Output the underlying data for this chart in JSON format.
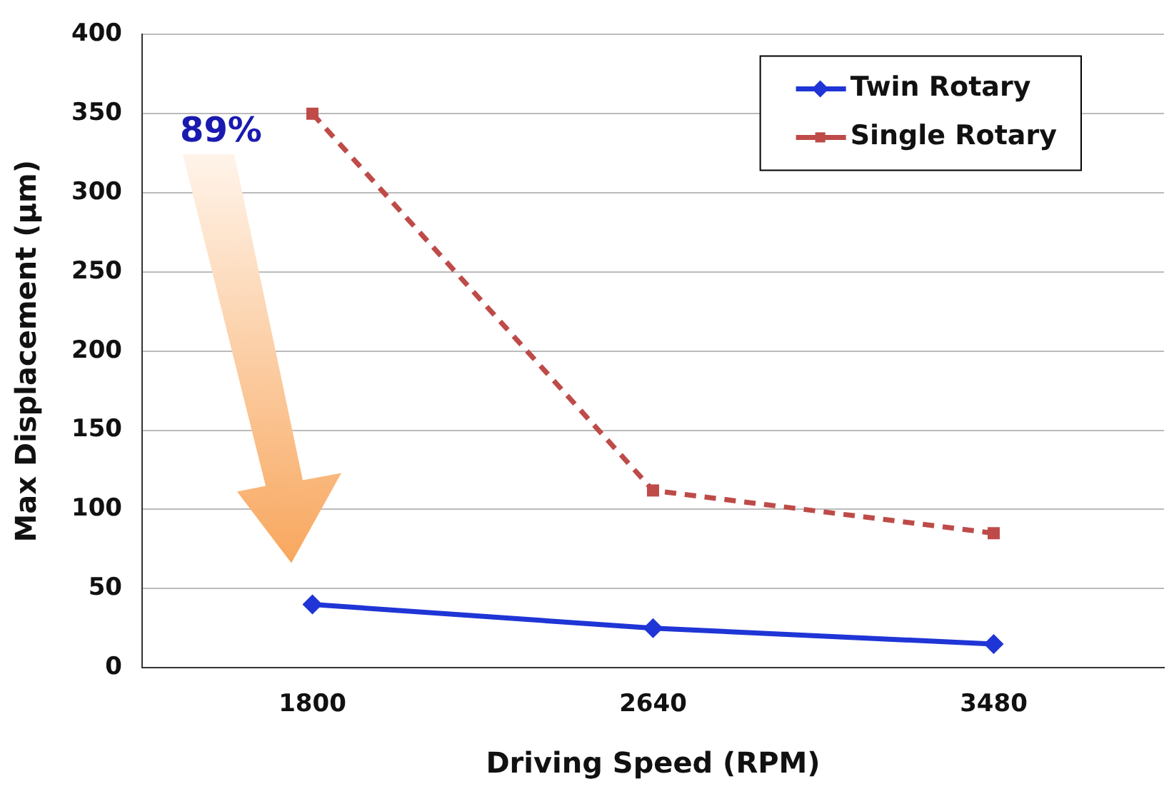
{
  "chart_data": {
    "type": "line",
    "xlabel": "Driving Speed (RPM)",
    "ylabel": "Max Displacement (μm)",
    "categories": [
      "1800",
      "2640",
      "3480"
    ],
    "series": [
      {
        "name": "Twin Rotary",
        "color": "#1f35d6",
        "values": [
          40,
          25,
          15
        ],
        "marker": "diamond",
        "line_style": "solid"
      },
      {
        "name": "Single Rotary",
        "color": "#be4b48",
        "values": [
          350,
          112,
          85
        ],
        "marker": "square",
        "line_style": "dashed"
      }
    ],
    "ylim": [
      0,
      400
    ],
    "yticks": [
      0,
      50,
      100,
      150,
      200,
      250,
      300,
      350,
      400
    ],
    "grid": "y",
    "legend": "top right",
    "annotations": [
      "89%"
    ]
  }
}
